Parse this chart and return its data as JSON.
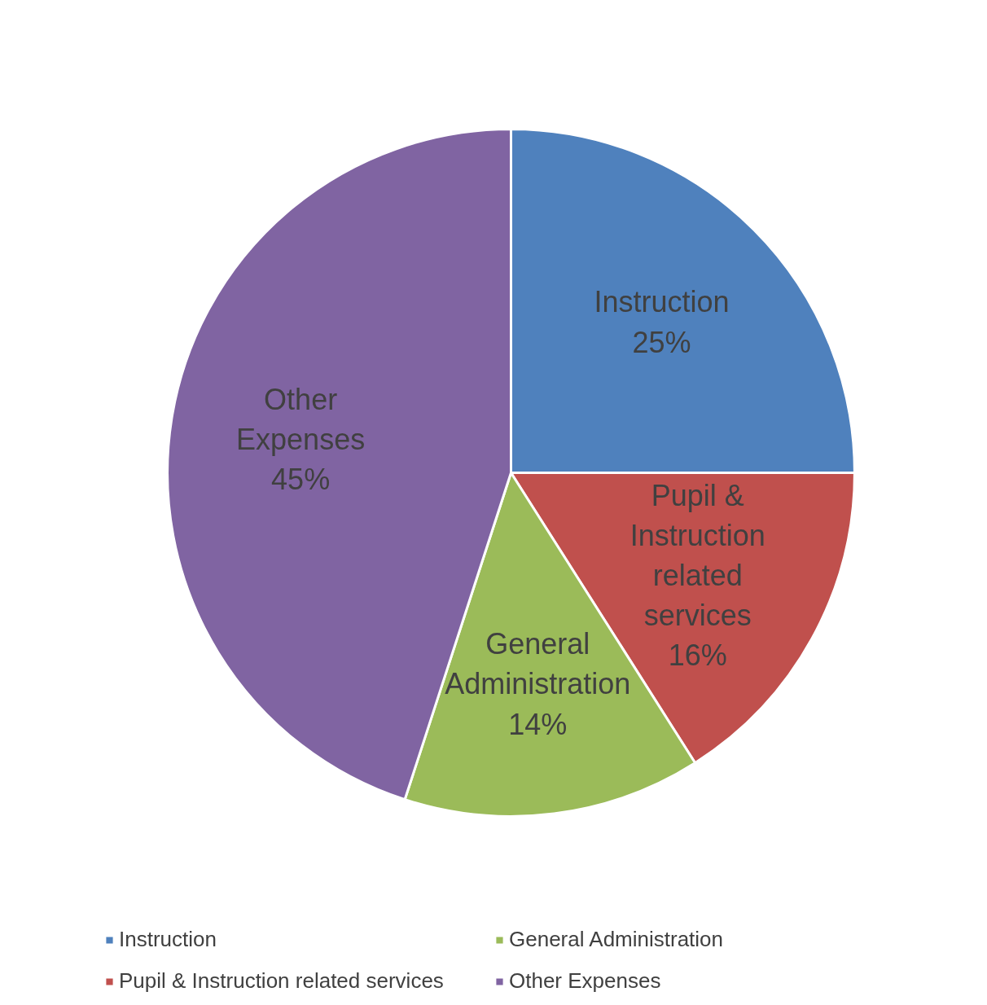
{
  "chart_data": {
    "type": "pie",
    "categories": [
      "Instruction",
      "Pupil & Instruction related services",
      "General Administration",
      "Other Expenses"
    ],
    "values": [
      25,
      16,
      14,
      45
    ],
    "value_labels": [
      "25%",
      "16%",
      "14%",
      "45%"
    ],
    "colors": [
      "#4f81bd",
      "#c0504d",
      "#9bbb59",
      "#8064a2"
    ],
    "data_labels": true,
    "legend": "bottom"
  }
}
